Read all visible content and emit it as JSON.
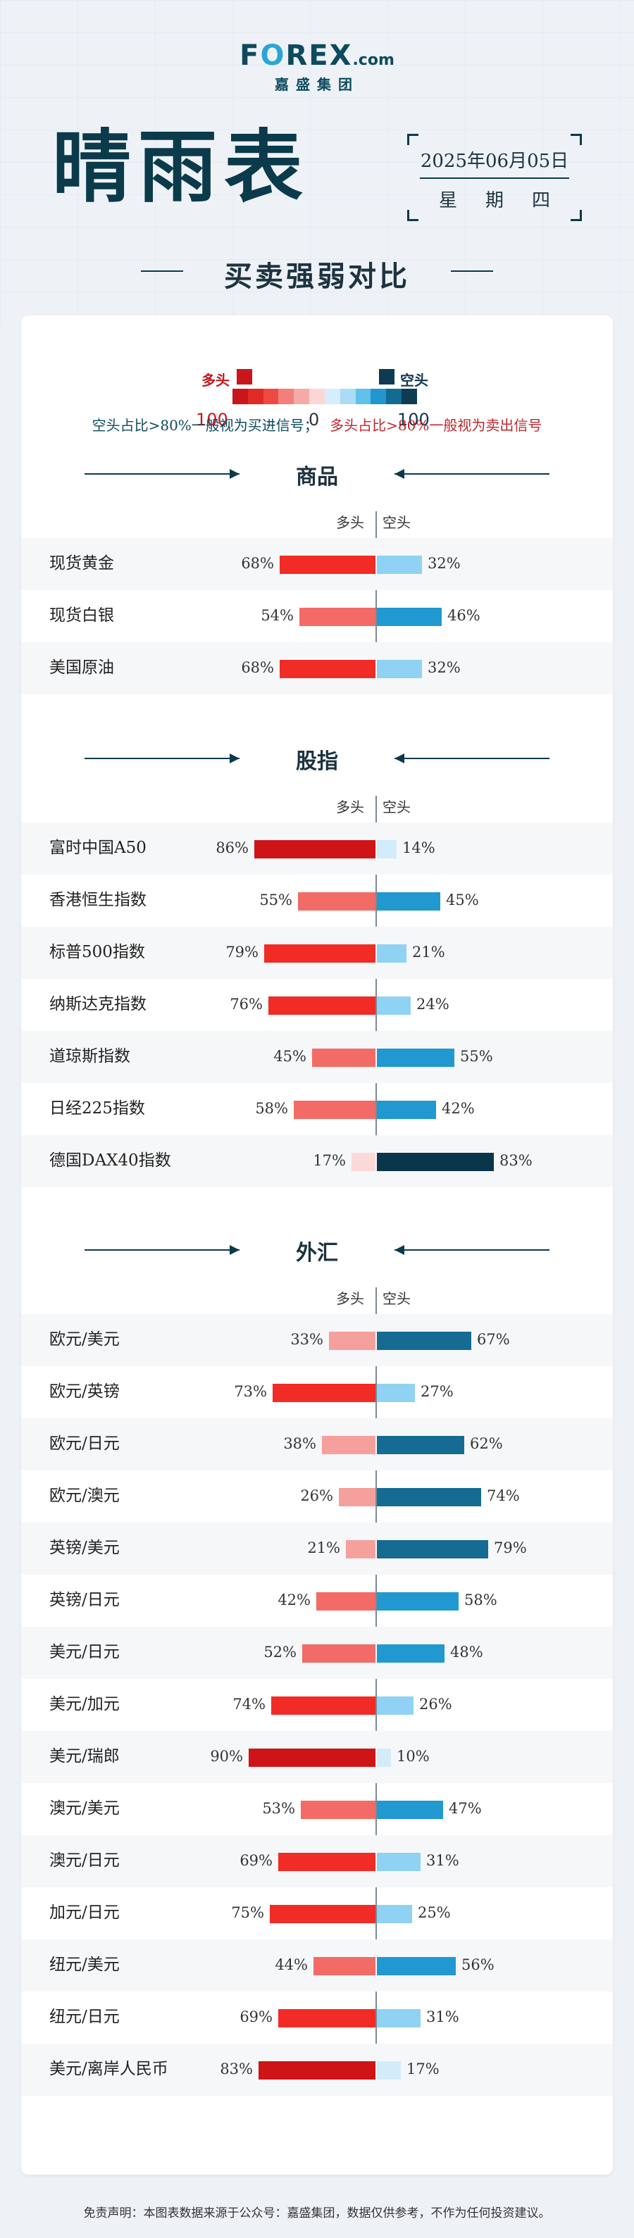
{
  "logo": {
    "main_pre": "F",
    "main_o": "O",
    "main_post": "REX",
    "dotcom": ".com",
    "sub": "嘉盛集团"
  },
  "header": {
    "title": "晴雨表",
    "date": "2025年06月05日",
    "weekday": "星期四",
    "subtitle": "买卖强弱对比"
  },
  "legend": {
    "long_label": "多头",
    "short_label": "空头",
    "left_num": "100",
    "center_num": "0",
    "right_num": "100",
    "colors_strip": [
      "#c8161c",
      "#e02a27",
      "#ee4a44",
      "#f27f7b",
      "#f6aaa8",
      "#fbd6d5",
      "#d6eefb",
      "#a9dcf5",
      "#5fc0ea",
      "#2196cf",
      "#136a93",
      "#0e3a52"
    ],
    "long_color": "#d0171f",
    "short_color": "#0e3a52"
  },
  "signal_note": {
    "buy": "空头占比>80%一般视为买进信号；",
    "sell": "多头占比>80%一般视为卖出信号"
  },
  "columns": {
    "long": "多头",
    "short": "空头"
  },
  "chart_data": {
    "type": "bar",
    "orientation": "horizontal-diverging",
    "value_unit": "%",
    "sections": [
      {
        "name": "商品",
        "items": [
          {
            "name": "现货黄金",
            "long": 68,
            "short": 32
          },
          {
            "name": "现货白银",
            "long": 54,
            "short": 46
          },
          {
            "name": "美国原油",
            "long": 68,
            "short": 32
          }
        ]
      },
      {
        "name": "股指",
        "items": [
          {
            "name": "富时中国A50",
            "long": 86,
            "short": 14
          },
          {
            "name": "香港恒生指数",
            "long": 55,
            "short": 45
          },
          {
            "name": "标普500指数",
            "long": 79,
            "short": 21
          },
          {
            "name": "纳斯达克指数",
            "long": 76,
            "short": 24
          },
          {
            "name": "道琼斯指数",
            "long": 45,
            "short": 55
          },
          {
            "name": "日经225指数",
            "long": 58,
            "short": 42
          },
          {
            "name": "德国DAX40指数",
            "long": 17,
            "short": 83
          }
        ]
      },
      {
        "name": "外汇",
        "items": [
          {
            "name": "欧元/美元",
            "long": 33,
            "short": 67
          },
          {
            "name": "欧元/英镑",
            "long": 73,
            "short": 27
          },
          {
            "name": "欧元/日元",
            "long": 38,
            "short": 62
          },
          {
            "name": "欧元/澳元",
            "long": 26,
            "short": 74
          },
          {
            "name": "英镑/美元",
            "long": 21,
            "short": 79
          },
          {
            "name": "英镑/日元",
            "long": 42,
            "short": 58
          },
          {
            "name": "美元/日元",
            "long": 52,
            "short": 48
          },
          {
            "name": "美元/加元",
            "long": 74,
            "short": 26
          },
          {
            "name": "美元/瑞郎",
            "long": 90,
            "short": 10
          },
          {
            "name": "澳元/美元",
            "long": 53,
            "short": 47
          },
          {
            "name": "澳元/日元",
            "long": 69,
            "short": 31
          },
          {
            "name": "加元/日元",
            "long": 75,
            "short": 25
          },
          {
            "name": "纽元/美元",
            "long": 44,
            "short": 56
          },
          {
            "name": "纽元/日元",
            "long": 69,
            "short": 31
          },
          {
            "name": "美元/离岸人民币",
            "long": 83,
            "short": 17
          }
        ]
      }
    ]
  },
  "footer": {
    "text": "免责声明：本图表数据来源于公众号：嘉盛集团，数据仅供参考，不作为任何投资建议。"
  }
}
